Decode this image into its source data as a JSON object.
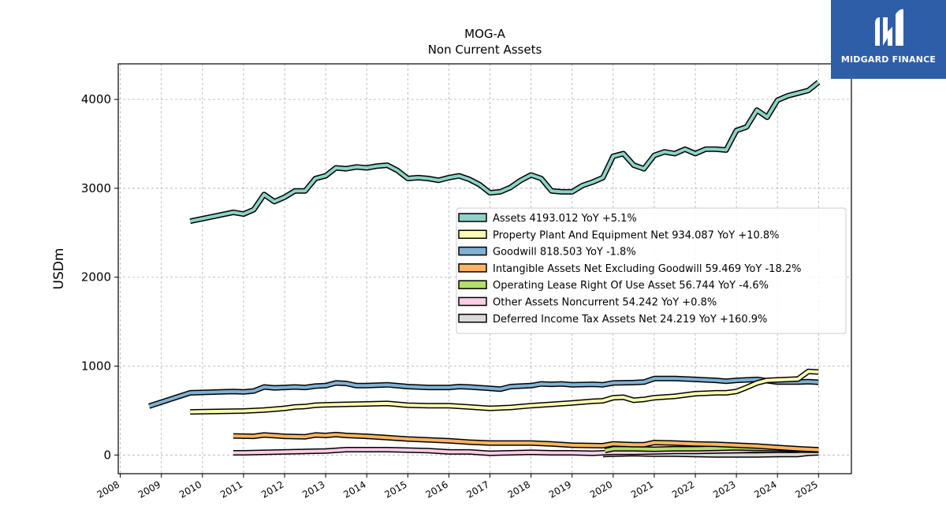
{
  "chart_data": {
    "type": "line",
    "title": "MOG-A",
    "subtitle": "Non Current  Assets",
    "ylabel": "USDm",
    "xlabel": "",
    "xlim": [
      2007.95,
      2025.8
    ],
    "ylim": [
      -210,
      4400
    ],
    "x_ticks": [
      "2008",
      "2009",
      "2010",
      "2011",
      "2012",
      "2013",
      "2014",
      "2015",
      "2016",
      "2017",
      "2018",
      "2019",
      "2020",
      "2021",
      "2022",
      "2023",
      "2024",
      "2025"
    ],
    "y_ticks": [
      "0",
      "1000",
      "2000",
      "3000",
      "4000"
    ],
    "grid": true,
    "legend_position": "center-right",
    "series": [
      {
        "name": "Assets",
        "legend": "Assets  4193.012 YoY +5.1%",
        "color": "#8dd3c7",
        "points": [
          [
            2009.7,
            2630
          ],
          [
            2010.75,
            2730
          ],
          [
            2011.0,
            2710
          ],
          [
            2011.25,
            2760
          ],
          [
            2011.5,
            2930
          ],
          [
            2011.75,
            2850
          ],
          [
            2012.0,
            2900
          ],
          [
            2012.25,
            2970
          ],
          [
            2012.5,
            2970
          ],
          [
            2012.75,
            3110
          ],
          [
            2013.0,
            3140
          ],
          [
            2013.25,
            3230
          ],
          [
            2013.5,
            3220
          ],
          [
            2013.75,
            3240
          ],
          [
            2014.0,
            3230
          ],
          [
            2014.25,
            3250
          ],
          [
            2014.5,
            3260
          ],
          [
            2014.75,
            3200
          ],
          [
            2015.0,
            3110
          ],
          [
            2015.25,
            3120
          ],
          [
            2015.5,
            3110
          ],
          [
            2015.75,
            3090
          ],
          [
            2016.0,
            3120
          ],
          [
            2016.25,
            3140
          ],
          [
            2016.5,
            3100
          ],
          [
            2016.75,
            3040
          ],
          [
            2017.0,
            2950
          ],
          [
            2017.25,
            2960
          ],
          [
            2017.5,
            3010
          ],
          [
            2017.75,
            3090
          ],
          [
            2018.0,
            3150
          ],
          [
            2018.25,
            3110
          ],
          [
            2018.5,
            2970
          ],
          [
            2018.75,
            2960
          ],
          [
            2019.0,
            2960
          ],
          [
            2019.25,
            3030
          ],
          [
            2019.5,
            3070
          ],
          [
            2019.75,
            3120
          ],
          [
            2020.0,
            3360
          ],
          [
            2020.25,
            3390
          ],
          [
            2020.5,
            3260
          ],
          [
            2020.75,
            3220
          ],
          [
            2021.0,
            3370
          ],
          [
            2021.25,
            3410
          ],
          [
            2021.5,
            3390
          ],
          [
            2021.75,
            3440
          ],
          [
            2022.0,
            3390
          ],
          [
            2022.25,
            3440
          ],
          [
            2022.5,
            3440
          ],
          [
            2022.75,
            3430
          ],
          [
            2023.0,
            3650
          ],
          [
            2023.25,
            3690
          ],
          [
            2023.5,
            3880
          ],
          [
            2023.75,
            3800
          ],
          [
            2024.0,
            3990
          ],
          [
            2024.25,
            4040
          ],
          [
            2024.5,
            4070
          ],
          [
            2024.75,
            4100
          ],
          [
            2025.0,
            4193
          ]
        ]
      },
      {
        "name": "Property Plant And Equipment Net",
        "legend": "Property Plant And Equipment Net  934.087 YoY +10.8%",
        "color": "#ffffb3",
        "points": [
          [
            2009.7,
            485
          ],
          [
            2011.0,
            495
          ],
          [
            2011.5,
            505
          ],
          [
            2012.0,
            525
          ],
          [
            2012.25,
            540
          ],
          [
            2012.5,
            545
          ],
          [
            2012.75,
            560
          ],
          [
            2013.0,
            565
          ],
          [
            2013.5,
            570
          ],
          [
            2014.0,
            575
          ],
          [
            2014.5,
            580
          ],
          [
            2015.0,
            560
          ],
          [
            2015.5,
            555
          ],
          [
            2016.0,
            555
          ],
          [
            2016.5,
            540
          ],
          [
            2017.0,
            525
          ],
          [
            2017.5,
            535
          ],
          [
            2018.0,
            555
          ],
          [
            2018.5,
            570
          ],
          [
            2019.0,
            585
          ],
          [
            2019.5,
            605
          ],
          [
            2019.75,
            610
          ],
          [
            2020.0,
            645
          ],
          [
            2020.25,
            650
          ],
          [
            2020.5,
            615
          ],
          [
            2020.75,
            625
          ],
          [
            2021.0,
            645
          ],
          [
            2021.5,
            660
          ],
          [
            2022.0,
            690
          ],
          [
            2022.5,
            700
          ],
          [
            2022.75,
            700
          ],
          [
            2023.0,
            715
          ],
          [
            2023.25,
            760
          ],
          [
            2023.5,
            810
          ],
          [
            2023.75,
            840
          ],
          [
            2024.0,
            845
          ],
          [
            2024.5,
            855
          ],
          [
            2024.75,
            940
          ],
          [
            2025.0,
            934
          ]
        ]
      },
      {
        "name": "Goodwill",
        "legend": "Goodwill  818.503 YoY -1.8%",
        "color": "#80b1d3",
        "points": [
          [
            2008.7,
            550
          ],
          [
            2009.7,
            700
          ],
          [
            2010.75,
            715
          ],
          [
            2011.0,
            710
          ],
          [
            2011.25,
            720
          ],
          [
            2011.5,
            765
          ],
          [
            2011.75,
            755
          ],
          [
            2012.0,
            760
          ],
          [
            2012.25,
            765
          ],
          [
            2012.5,
            760
          ],
          [
            2012.75,
            775
          ],
          [
            2013.0,
            780
          ],
          [
            2013.25,
            810
          ],
          [
            2013.5,
            805
          ],
          [
            2013.75,
            780
          ],
          [
            2014.0,
            780
          ],
          [
            2014.5,
            790
          ],
          [
            2015.0,
            770
          ],
          [
            2015.5,
            760
          ],
          [
            2016.0,
            760
          ],
          [
            2016.25,
            770
          ],
          [
            2016.5,
            765
          ],
          [
            2017.0,
            750
          ],
          [
            2017.25,
            740
          ],
          [
            2017.5,
            770
          ],
          [
            2018.0,
            780
          ],
          [
            2018.25,
            800
          ],
          [
            2018.5,
            795
          ],
          [
            2018.75,
            800
          ],
          [
            2019.0,
            790
          ],
          [
            2019.5,
            795
          ],
          [
            2019.75,
            790
          ],
          [
            2020.0,
            810
          ],
          [
            2020.5,
            815
          ],
          [
            2020.75,
            820
          ],
          [
            2021.0,
            860
          ],
          [
            2021.5,
            860
          ],
          [
            2022.0,
            850
          ],
          [
            2022.5,
            840
          ],
          [
            2022.75,
            830
          ],
          [
            2023.0,
            840
          ],
          [
            2023.5,
            850
          ],
          [
            2024.0,
            820
          ],
          [
            2024.5,
            820
          ],
          [
            2024.75,
            825
          ],
          [
            2025.0,
            818.5
          ]
        ]
      },
      {
        "name": "Intangible Assets Net Excluding Goodwill",
        "legend": "Intangible Assets Net Excluding Goodwill  59.469 YoY -18.2%",
        "color": "#fdb462",
        "points": [
          [
            2010.75,
            215
          ],
          [
            2011.25,
            210
          ],
          [
            2011.5,
            225
          ],
          [
            2012.0,
            210
          ],
          [
            2012.5,
            205
          ],
          [
            2012.75,
            225
          ],
          [
            2013.0,
            220
          ],
          [
            2013.25,
            230
          ],
          [
            2013.5,
            220
          ],
          [
            2014.0,
            210
          ],
          [
            2014.5,
            195
          ],
          [
            2015.0,
            180
          ],
          [
            2015.5,
            170
          ],
          [
            2016.0,
            160
          ],
          [
            2016.5,
            145
          ],
          [
            2017.0,
            135
          ],
          [
            2017.5,
            135
          ],
          [
            2018.0,
            135
          ],
          [
            2018.5,
            125
          ],
          [
            2019.0,
            110
          ],
          [
            2019.75,
            105
          ],
          [
            2020.0,
            125
          ],
          [
            2020.5,
            115
          ],
          [
            2020.75,
            115
          ],
          [
            2021.0,
            140
          ],
          [
            2021.5,
            135
          ],
          [
            2022.0,
            125
          ],
          [
            2022.5,
            120
          ],
          [
            2023.0,
            110
          ],
          [
            2023.5,
            100
          ],
          [
            2024.0,
            85
          ],
          [
            2024.5,
            70
          ],
          [
            2025.0,
            59.5
          ]
        ]
      },
      {
        "name": "Operating Lease Right Of Use Asset",
        "legend": "Operating Lease Right Of Use Asset  56.744 YoY -4.6%",
        "color": "#b3de69",
        "points": [
          [
            2019.8,
            50
          ],
          [
            2020.0,
            70
          ],
          [
            2020.5,
            70
          ],
          [
            2021.0,
            65
          ],
          [
            2021.5,
            70
          ],
          [
            2022.0,
            70
          ],
          [
            2022.5,
            75
          ],
          [
            2023.0,
            80
          ],
          [
            2023.5,
            75
          ],
          [
            2024.0,
            70
          ],
          [
            2024.5,
            60
          ],
          [
            2025.0,
            56.7
          ]
        ]
      },
      {
        "name": "Other Assets Noncurrent",
        "legend": "Other Assets Noncurrent  54.242 YoY +0.8%",
        "color": "#fccde5",
        "points": [
          [
            2010.75,
            25
          ],
          [
            2011.0,
            25
          ],
          [
            2012.0,
            35
          ],
          [
            2012.5,
            40
          ],
          [
            2013.0,
            45
          ],
          [
            2013.5,
            60
          ],
          [
            2014.0,
            60
          ],
          [
            2014.5,
            60
          ],
          [
            2015.0,
            55
          ],
          [
            2015.5,
            50
          ],
          [
            2016.0,
            35
          ],
          [
            2016.5,
            35
          ],
          [
            2017.0,
            20
          ],
          [
            2017.5,
            25
          ],
          [
            2018.0,
            30
          ],
          [
            2018.5,
            25
          ],
          [
            2019.0,
            25
          ],
          [
            2019.5,
            20
          ],
          [
            2020.0,
            30
          ],
          [
            2020.5,
            30
          ],
          [
            2021.0,
            35
          ],
          [
            2021.5,
            40
          ],
          [
            2022.0,
            40
          ],
          [
            2022.5,
            45
          ],
          [
            2023.0,
            50
          ],
          [
            2023.5,
            55
          ],
          [
            2024.0,
            54
          ],
          [
            2024.5,
            55
          ],
          [
            2025.0,
            54.2
          ]
        ]
      },
      {
        "name": "Deferred Income Tax Assets Net",
        "legend": "Deferred Income Tax Assets Net  24.219 YoY +160.9%",
        "color": "#d9d9d9",
        "points": [
          [
            2019.75,
            5
          ],
          [
            2020.0,
            10
          ],
          [
            2020.5,
            15
          ],
          [
            2021.0,
            10
          ],
          [
            2021.5,
            10
          ],
          [
            2022.0,
            5
          ],
          [
            2022.5,
            0
          ],
          [
            2023.0,
            0
          ],
          [
            2023.5,
            0
          ],
          [
            2024.0,
            5
          ],
          [
            2024.5,
            5
          ],
          [
            2024.75,
            20
          ],
          [
            2025.0,
            24.2
          ]
        ]
      }
    ]
  },
  "logo": {
    "text": "MIDGARD FINANCE",
    "background": "#2f5ea8"
  }
}
